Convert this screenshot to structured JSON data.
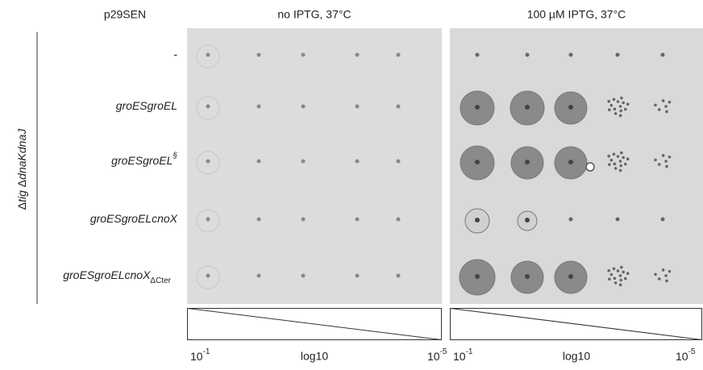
{
  "header": {
    "strain_column": "p29SEN",
    "panels": [
      "no IPTG, 37°C",
      "100 µM IPTG, 37°C"
    ]
  },
  "side_label": [
    {
      "text": "Δ",
      "italic": false
    },
    {
      "text": "tig",
      "italic": true
    },
    {
      "text": " Δ",
      "italic": false
    },
    {
      "text": "dnaKdnaJ",
      "italic": true
    }
  ],
  "rows": [
    {
      "label": "-",
      "italic": false
    },
    {
      "label": "groESgroEL",
      "italic": true
    },
    {
      "label": "groESgroEL",
      "sup": "§",
      "italic": true
    },
    {
      "label": "groESgroELcnoX",
      "italic": true
    },
    {
      "label": "groESgroELcnoX",
      "sub": "ΔCter",
      "italic": true
    }
  ],
  "dilution_labels": {
    "start": {
      "base": "10",
      "exp": "-1"
    },
    "middle": "log10",
    "end": {
      "base": "10",
      "exp": "-5"
    }
  }
}
